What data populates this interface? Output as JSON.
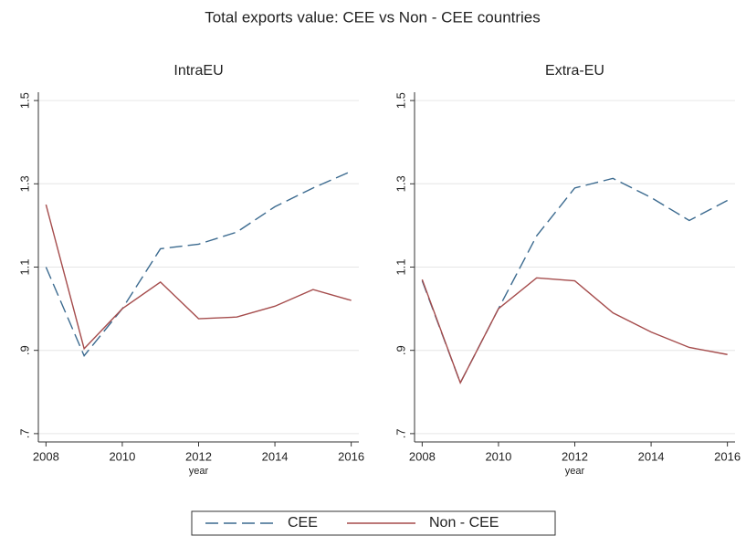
{
  "title": "Total exports value: CEE vs Non - CEE countries",
  "chart_data": [
    {
      "type": "line",
      "title": "IntraEU",
      "xlabel": "year",
      "x": [
        2008,
        2009,
        2010,
        2011,
        2012,
        2013,
        2014,
        2015,
        2016
      ],
      "series": [
        {
          "name": "CEE",
          "color": "#3b6a8f",
          "style": "dashed",
          "values": [
            1.1,
            0.887,
            1.0,
            1.144,
            1.155,
            1.184,
            1.245,
            1.29,
            1.33
          ]
        },
        {
          "name": "Non - CEE",
          "color": "#a54c4c",
          "style": "solid",
          "values": [
            1.25,
            0.904,
            1.0,
            1.064,
            0.976,
            0.98,
            1.006,
            1.046,
            1.02
          ]
        }
      ],
      "xlim": [
        2007.8,
        2016.2
      ],
      "xticks": [
        2008,
        2010,
        2012,
        2014,
        2016
      ],
      "ylim": [
        0.68,
        1.52
      ],
      "yticks": [
        {
          "value": 0.7,
          "label": ".7"
        },
        {
          "value": 0.9,
          "label": ".9"
        },
        1.1,
        1.3,
        1.5
      ],
      "grid": true
    },
    {
      "type": "line",
      "title": "Extra-EU",
      "xlabel": "year",
      "x": [
        2008,
        2009,
        2010,
        2011,
        2012,
        2013,
        2014,
        2015,
        2016
      ],
      "series": [
        {
          "name": "CEE",
          "color": "#3b6a8f",
          "style": "dashed",
          "values": [
            1.067,
            0.822,
            1.0,
            1.175,
            1.29,
            1.313,
            1.267,
            1.212,
            1.26
          ]
        },
        {
          "name": "Non - CEE",
          "color": "#a54c4c",
          "style": "solid",
          "values": [
            1.07,
            0.822,
            1.0,
            1.074,
            1.067,
            0.99,
            0.944,
            0.907,
            0.89
          ]
        }
      ],
      "xlim": [
        2007.8,
        2016.2
      ],
      "xticks": [
        2008,
        2010,
        2012,
        2014,
        2016
      ],
      "ylim": [
        0.68,
        1.52
      ],
      "yticks": [
        {
          "value": 0.7,
          "label": ".7"
        },
        {
          "value": 0.9,
          "label": ".9"
        },
        1.1,
        1.3,
        1.5
      ],
      "grid": true
    }
  ]
}
